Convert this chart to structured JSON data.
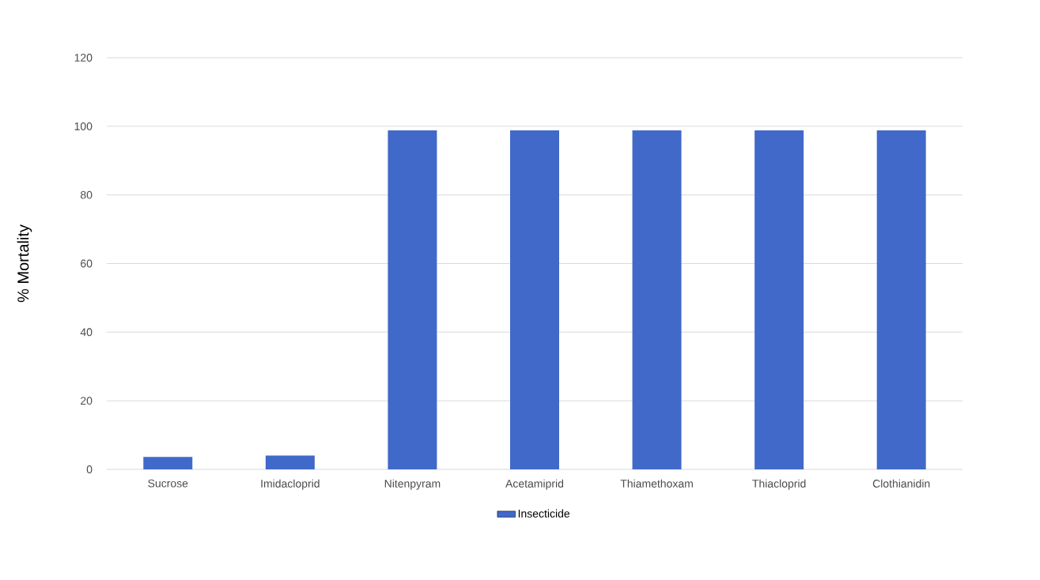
{
  "chart_data": {
    "type": "bar",
    "ylabel": "% Mortality",
    "categories": [
      "Sucrose",
      "Imidacloprid",
      "Nitenpyram",
      "Acetamiprid",
      "Thiamethoxam",
      "Thiacloprid",
      "Clothianidin"
    ],
    "series": [
      {
        "name": "Insecticide",
        "color": "#4169c9",
        "values": [
          3.6,
          4.0,
          98.8,
          98.8,
          98.8,
          98.8,
          98.8
        ]
      }
    ],
    "ylim": [
      0,
      120
    ],
    "yticks": [
      0,
      20,
      40,
      60,
      80,
      100,
      120
    ],
    "grid": "y",
    "legend": "bottom"
  }
}
